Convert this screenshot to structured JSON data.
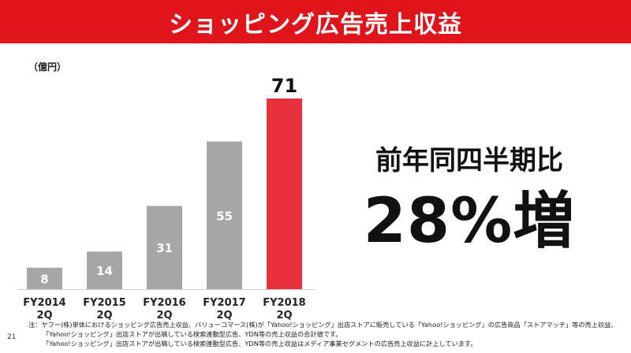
{
  "header": {
    "title": "ショッピング広告売上収益"
  },
  "chart_data": {
    "type": "bar",
    "unit": "（億円）",
    "categories": [
      [
        "FY2014",
        "2Q"
      ],
      [
        "FY2015",
        "2Q"
      ],
      [
        "FY2016",
        "2Q"
      ],
      [
        "FY2017",
        "2Q"
      ],
      [
        "FY2018",
        "2Q"
      ]
    ],
    "values": [
      8,
      14,
      31,
      55,
      71
    ],
    "colors": [
      "#a6a6a6",
      "#a6a6a6",
      "#a6a6a6",
      "#a6a6a6",
      "#e8313a"
    ],
    "label_colors": [
      "#ffffff",
      "#ffffff",
      "#ffffff",
      "#ffffff",
      "#111111"
    ],
    "label_position": [
      "inside",
      "inside",
      "inside",
      "inside",
      "above"
    ],
    "ylim": [
      0,
      80
    ],
    "grid": false,
    "legend": "none"
  },
  "headline": {
    "sub": "前年同四半期比",
    "main": "28%増"
  },
  "footnote": {
    "lines": [
      "注：ヤフー(株)単体におけるショッピング広告売上収益、バリューコマース(株)が「Yahoo!ショッピング」出店ストアに販売している「Yahoo!ショッピング」の広告商品「ストアマッチ」等の売上収益、",
      "「Yahoo!ショッピング」出店ストアが出稿している検索連動型広告、YDN等の売上収益の合計値です。",
      "「Yahoo!ショッピング」出店ストアが出稿している検索連動型広告、YDN等の売上収益はメディア事業セグメントの広告売上収益に計上しています。"
    ]
  },
  "page": {
    "number": "21"
  }
}
